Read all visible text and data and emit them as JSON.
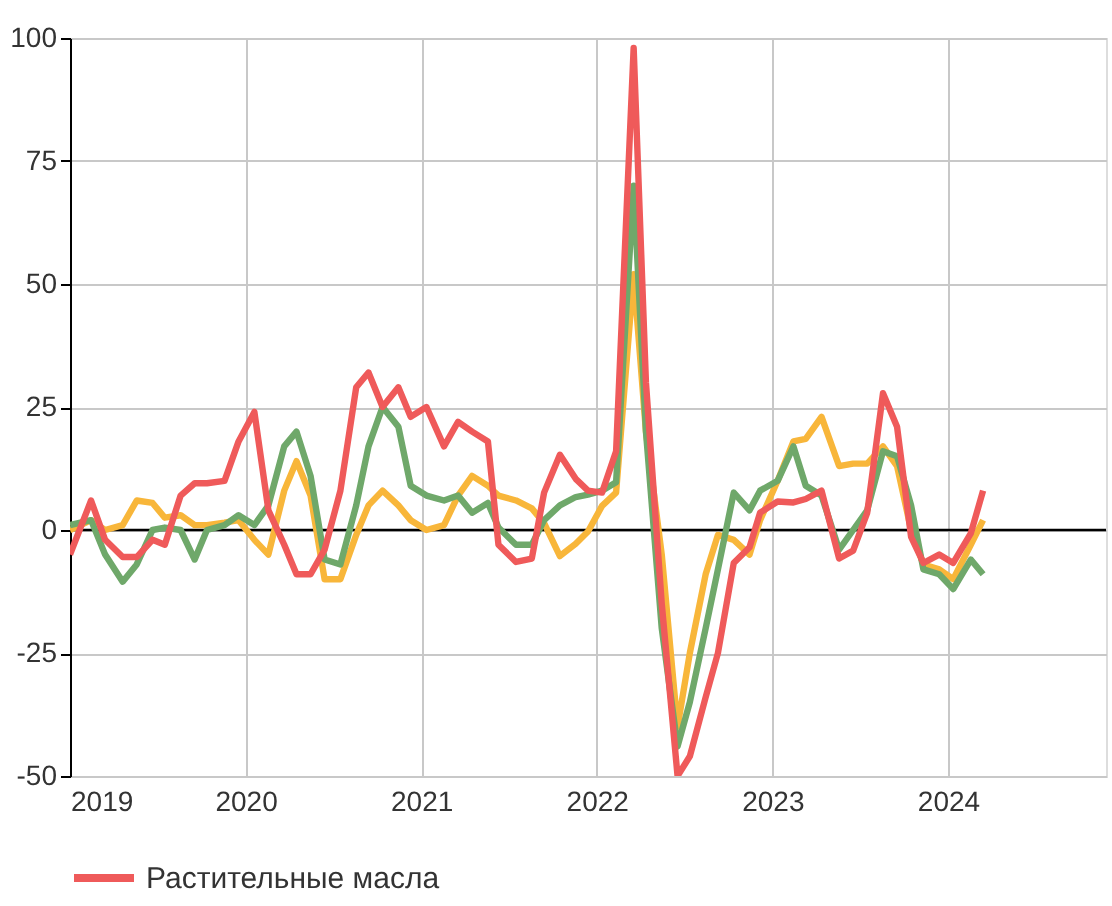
{
  "chart_data": {
    "type": "line",
    "x": [
      2019.0,
      2019.12,
      2019.2,
      2019.3,
      2019.38,
      2019.47,
      2019.54,
      2019.63,
      2019.71,
      2019.78,
      2019.88,
      2019.96,
      2020.05,
      2020.13,
      2020.22,
      2020.29,
      2020.37,
      2020.45,
      2020.54,
      2020.63,
      2020.7,
      2020.78,
      2020.87,
      2020.94,
      2021.03,
      2021.13,
      2021.21,
      2021.29,
      2021.38,
      2021.44,
      2021.54,
      2021.63,
      2021.7,
      2021.79,
      2021.88,
      2021.95,
      2022.03,
      2022.11,
      2022.21,
      2022.28,
      2022.37,
      2022.46,
      2022.53,
      2022.62,
      2022.69,
      2022.78,
      2022.87,
      2022.93,
      2023.03,
      2023.12,
      2023.19,
      2023.28,
      2023.38,
      2023.46,
      2023.54,
      2023.63,
      2023.71,
      2023.79,
      2023.86,
      2023.95,
      2024.03,
      2024.13,
      2024.2
    ],
    "series": [
      {
        "color": "#f8b63a",
        "values": [
          0,
          2,
          0,
          1,
          6,
          5.5,
          2.5,
          3,
          1,
          1,
          1.5,
          2,
          -2,
          -5,
          8,
          14,
          7,
          -10,
          -10,
          -1,
          5,
          8,
          5,
          2,
          0,
          1,
          7,
          11,
          9,
          7,
          6,
          4.4,
          1.4,
          -5.3,
          -2.8,
          -0.3,
          4.9,
          7.6,
          52,
          20,
          -5,
          -40,
          -25,
          -9,
          -1,
          -2,
          -5,
          2,
          10,
          18,
          18.5,
          23,
          13,
          13.5,
          13.5,
          17,
          13,
          0,
          -7,
          -8,
          -10,
          -3,
          2
        ]
      },
      {
        "color": "#6fa86a",
        "values": [
          1,
          2,
          -5,
          -10.5,
          -7,
          0,
          0.5,
          0,
          -6,
          0,
          1,
          3,
          1,
          5,
          17,
          20,
          11,
          -6,
          -7,
          5,
          17,
          25,
          21,
          9,
          7,
          6,
          7,
          3.5,
          5.5,
          0.5,
          -3,
          -3,
          2,
          5,
          6.7,
          7.2,
          8,
          9.7,
          70,
          20,
          -20,
          -44,
          -35,
          -20,
          -8,
          7.6,
          4,
          8,
          10,
          17,
          9,
          7,
          -4,
          0,
          4,
          16,
          15,
          5,
          -8,
          -9,
          -12,
          -6,
          -9
        ]
      },
      {
        "name": "Растительные масла",
        "color": "#ef5a5a",
        "values": [
          -5,
          6,
          -2,
          -5.5,
          -5.5,
          -2,
          -3,
          7,
          9.5,
          9.5,
          10,
          18,
          24,
          4,
          -3,
          -9,
          -9,
          -4,
          8,
          29,
          32,
          25,
          29,
          23,
          25,
          17,
          22,
          20,
          18,
          -3,
          -6.5,
          -5.8,
          7.6,
          15.3,
          10.4,
          8,
          7.6,
          16,
          98,
          30,
          -15,
          -50,
          -46,
          -34,
          -25,
          -6.7,
          -3.5,
          3.5,
          5.8,
          5.6,
          6.3,
          8,
          -5.8,
          -4.2,
          3.5,
          27.8,
          21,
          -1.4,
          -6.7,
          -5,
          -6.7,
          -0.7,
          8
        ]
      }
    ],
    "xlim": [
      2019,
      2024.9
    ],
    "xticks": [
      2019,
      2020,
      2021,
      2022,
      2023,
      2024
    ],
    "ylim": [
      -50,
      100
    ],
    "yticks": [
      -50,
      -25,
      0,
      25,
      50,
      75,
      100
    ],
    "ref_lines": [
      {
        "axis": "y",
        "value": 0,
        "color": "#000000"
      }
    ],
    "grid": true,
    "legend": "bottom",
    "line_style": "solid",
    "marker": "none"
  }
}
